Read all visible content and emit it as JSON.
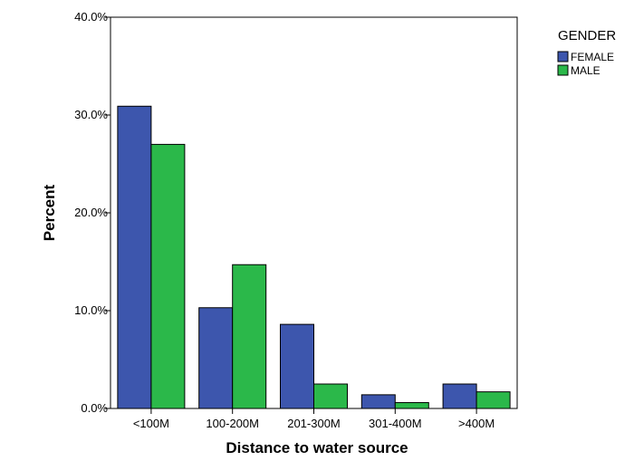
{
  "chart_data": {
    "type": "bar",
    "xlabel": "Distance to water source",
    "ylabel": "Percent",
    "ylim": [
      0,
      40
    ],
    "y_ticks": [
      "0.0%",
      "10.0%",
      "20.0%",
      "30.0%",
      "40.0%"
    ],
    "categories": [
      "<100M",
      "100-200M",
      "201-300M",
      "301-400M",
      ">400M"
    ],
    "legend": {
      "title": "GENDER",
      "position": "top-right"
    },
    "series": [
      {
        "name": "FEMALE",
        "color": "#3d56ad",
        "values": [
          30.9,
          10.3,
          8.6,
          1.4,
          2.5
        ]
      },
      {
        "name": "MALE",
        "color": "#2bb84a",
        "values": [
          27.0,
          14.7,
          2.5,
          0.6,
          1.7
        ]
      }
    ]
  }
}
